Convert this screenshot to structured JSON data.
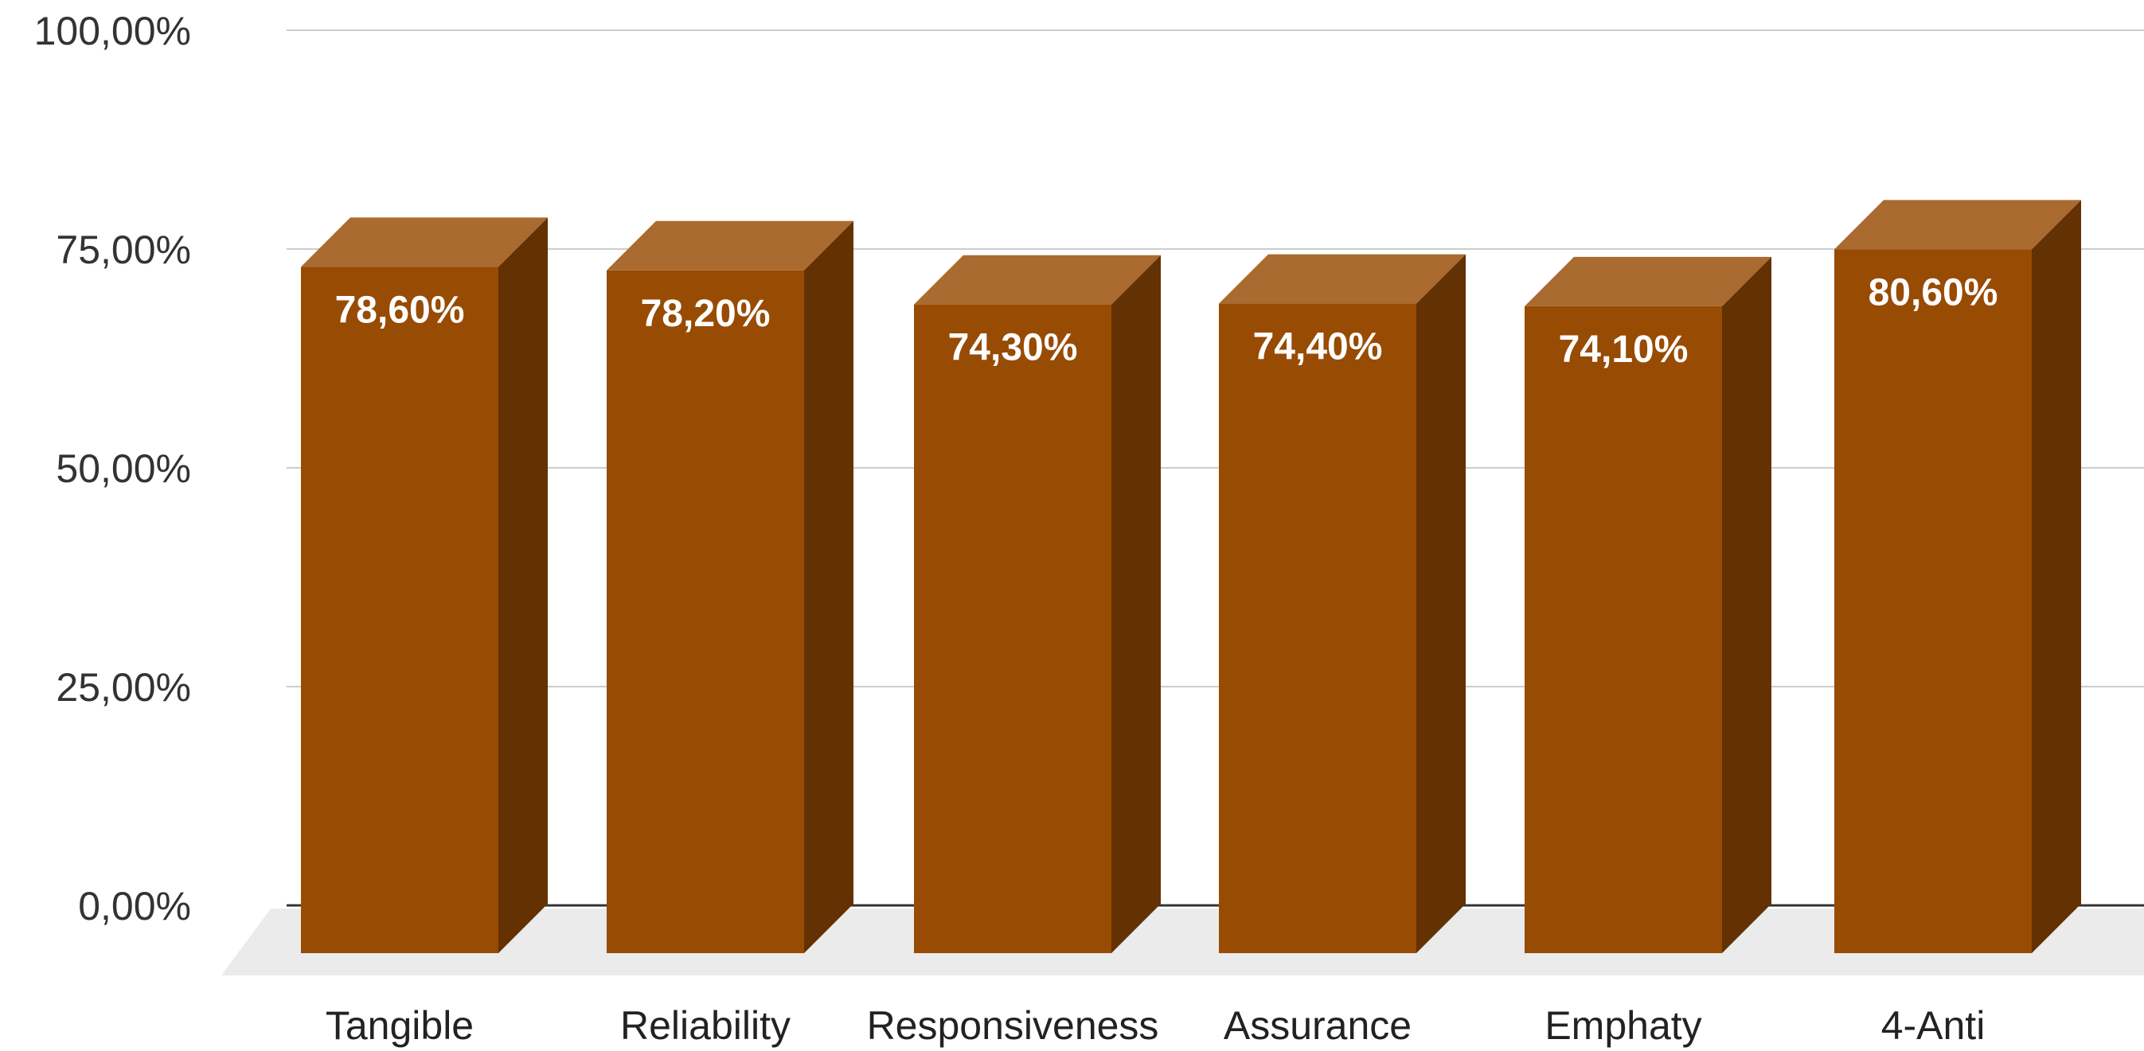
{
  "chart_data": {
    "type": "bar",
    "style": "3d-column",
    "categories": [
      "Tangible",
      "Reliability",
      "Responsiveness",
      "Assurance",
      "Emphaty",
      "4-Anti"
    ],
    "series": [
      {
        "values": [
          78.6,
          78.2,
          74.3,
          74.4,
          74.1,
          80.6
        ],
        "data_labels": [
          "78,60%",
          "78,20%",
          "74,30%",
          "74,40%",
          "74,10%",
          "80,60%"
        ]
      }
    ],
    "y_ticks": [
      {
        "value": 0,
        "label": "0,00%"
      },
      {
        "value": 25,
        "label": "25,00%"
      },
      {
        "value": 50,
        "label": "50,00%"
      },
      {
        "value": 75,
        "label": "75,00%"
      },
      {
        "value": 100,
        "label": "100,00%"
      }
    ],
    "ylim": [
      0,
      100
    ],
    "grid": true,
    "legend": "none",
    "colors": {
      "bar_front": "#984B03",
      "bar_top": "#AA6B30",
      "bar_side": "#633102",
      "floor": "#EBEBEB",
      "grid": "#CCCCCC",
      "baseline": "#333333"
    }
  }
}
